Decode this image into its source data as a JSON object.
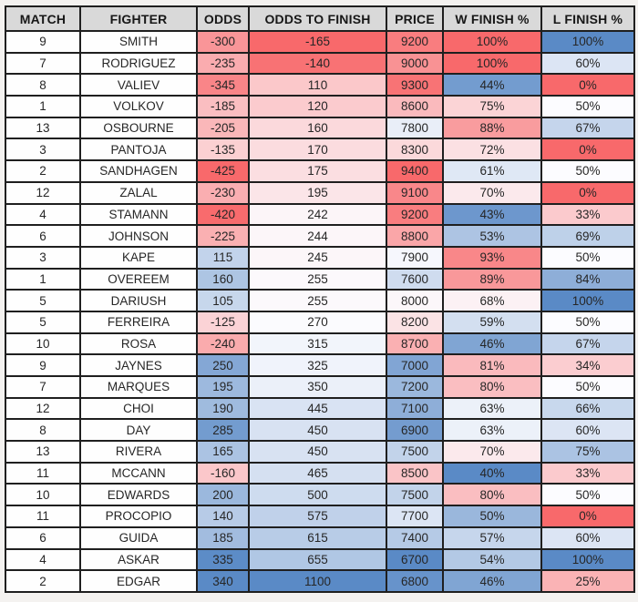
{
  "chart_data": {
    "type": "table",
    "columns": [
      {
        "label": "MATCH",
        "scale": null
      },
      {
        "label": "FIGHTER",
        "scale": null
      },
      {
        "label": "ODDS",
        "scale": "min_red"
      },
      {
        "label": "ODDS TO FINISH",
        "scale": "min_red"
      },
      {
        "label": "PRICE",
        "scale": "min_blue"
      },
      {
        "label": "W FINISH %",
        "scale": "min_blue"
      },
      {
        "label": "L FINISH %",
        "scale": "min_red"
      }
    ],
    "conditional_format": {
      "red": "#F8696B",
      "white": "#FCFCFF",
      "blue": "#5A8AC6",
      "midpoint": "percentile50",
      "note": "min_red = lowest value red / highest blue; min_blue = lowest value blue / highest red"
    },
    "header_bg": "#D9D9D9",
    "grid_color": "#1F1F1F",
    "plain_cell_bg": "#FEFEFE",
    "rows": [
      [
        "9",
        "SMITH",
        "-300",
        "-165",
        "9200",
        "100%",
        "100%"
      ],
      [
        "7",
        "RODRIGUEZ",
        "-235",
        "-140",
        "9000",
        "100%",
        "60%"
      ],
      [
        "8",
        "VALIEV",
        "-345",
        "110",
        "9300",
        "44%",
        "0%"
      ],
      [
        "1",
        "VOLKOV",
        "-185",
        "120",
        "8600",
        "75%",
        "50%"
      ],
      [
        "13",
        "OSBOURNE",
        "-205",
        "160",
        "7800",
        "88%",
        "67%"
      ],
      [
        "3",
        "PANTOJA",
        "-135",
        "170",
        "8300",
        "72%",
        "0%"
      ],
      [
        "2",
        "SANDHAGEN",
        "-425",
        "175",
        "9400",
        "61%",
        "50%"
      ],
      [
        "12",
        "ZALAL",
        "-230",
        "195",
        "9100",
        "70%",
        "0%"
      ],
      [
        "4",
        "STAMANN",
        "-420",
        "242",
        "9200",
        "43%",
        "33%"
      ],
      [
        "6",
        "JOHNSON",
        "-225",
        "244",
        "8800",
        "53%",
        "69%"
      ],
      [
        "3",
        "KAPE",
        "115",
        "245",
        "7900",
        "93%",
        "50%"
      ],
      [
        "1",
        "OVEREEM",
        "160",
        "255",
        "7600",
        "89%",
        "84%"
      ],
      [
        "5",
        "DARIUSH",
        "105",
        "255",
        "8000",
        "68%",
        "100%"
      ],
      [
        "5",
        "FERREIRA",
        "-125",
        "270",
        "8200",
        "59%",
        "50%"
      ],
      [
        "10",
        "ROSA",
        "-240",
        "315",
        "8700",
        "46%",
        "67%"
      ],
      [
        "9",
        "JAYNES",
        "250",
        "325",
        "7000",
        "81%",
        "34%"
      ],
      [
        "7",
        "MARQUES",
        "195",
        "350",
        "7200",
        "80%",
        "50%"
      ],
      [
        "12",
        "CHOI",
        "190",
        "445",
        "7100",
        "63%",
        "66%"
      ],
      [
        "8",
        "DAY",
        "285",
        "450",
        "6900",
        "63%",
        "60%"
      ],
      [
        "13",
        "RIVERA",
        "165",
        "450",
        "7500",
        "70%",
        "75%"
      ],
      [
        "11",
        "MCCANN",
        "-160",
        "465",
        "8500",
        "40%",
        "33%"
      ],
      [
        "10",
        "EDWARDS",
        "200",
        "500",
        "7500",
        "80%",
        "50%"
      ],
      [
        "11",
        "PROCOPIO",
        "140",
        "575",
        "7700",
        "50%",
        "0%"
      ],
      [
        "6",
        "GUIDA",
        "185",
        "615",
        "7400",
        "57%",
        "60%"
      ],
      [
        "4",
        "ASKAR",
        "335",
        "655",
        "6700",
        "54%",
        "100%"
      ],
      [
        "2",
        "EDGAR",
        "340",
        "1100",
        "6800",
        "46%",
        "25%"
      ]
    ]
  }
}
